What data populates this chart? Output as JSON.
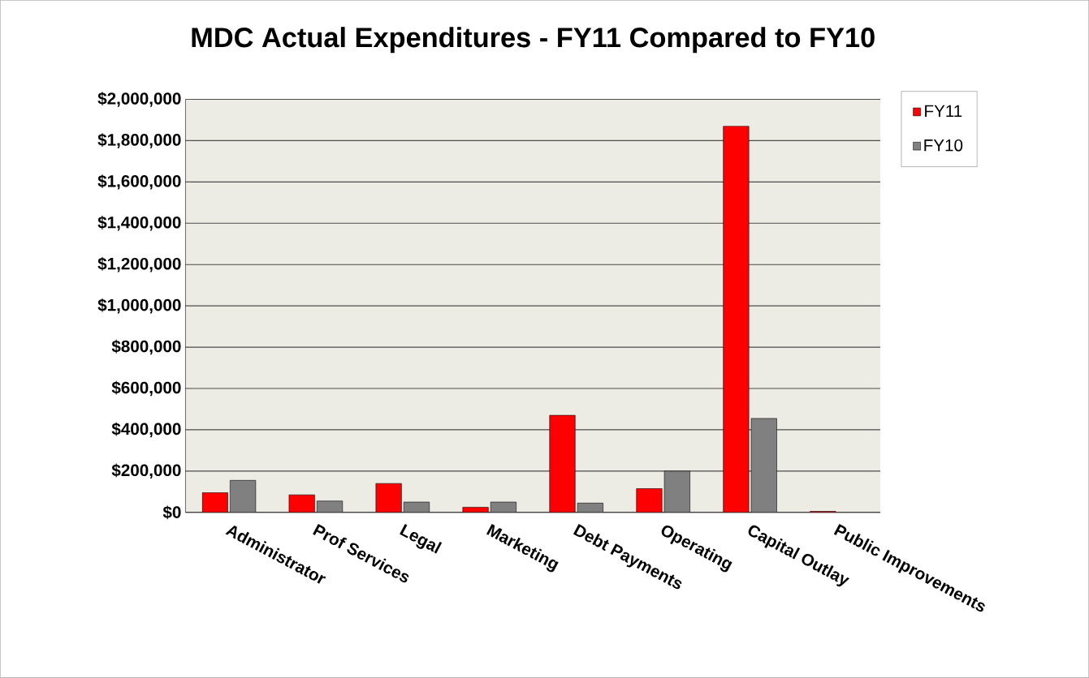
{
  "chart_data": {
    "type": "bar",
    "title": "MDC Actual Expenditures - FY11 Compared to FY10",
    "categories": [
      "Administrator",
      "Prof Services",
      "Legal",
      "Marketing",
      "Debt Payments",
      "Operating",
      "Capital Outlay",
      "Public Improvements"
    ],
    "series": [
      {
        "name": "FY11",
        "color": "#ff0000",
        "values": [
          95000,
          85000,
          140000,
          25000,
          470000,
          115000,
          1870000,
          5000
        ]
      },
      {
        "name": "FY10",
        "color": "#808080",
        "values": [
          155000,
          55000,
          50000,
          50000,
          45000,
          200000,
          455000,
          null
        ]
      }
    ],
    "ylim": [
      0,
      2000000
    ],
    "yticks": [
      {
        "value": 0,
        "label": "$0"
      },
      {
        "value": 200000,
        "label": "$200,000"
      },
      {
        "value": 400000,
        "label": "$400,000"
      },
      {
        "value": 600000,
        "label": "$600,000"
      },
      {
        "value": 800000,
        "label": "$800,000"
      },
      {
        "value": 1000000,
        "label": "$1,000,000"
      },
      {
        "value": 1200000,
        "label": "$1,200,000"
      },
      {
        "value": 1400000,
        "label": "$1,400,000"
      },
      {
        "value": 1600000,
        "label": "$1,600,000"
      },
      {
        "value": 1800000,
        "label": "$1,800,000"
      },
      {
        "value": 2000000,
        "label": "$2,000,000"
      }
    ],
    "grid": "y",
    "legend": "top right"
  }
}
